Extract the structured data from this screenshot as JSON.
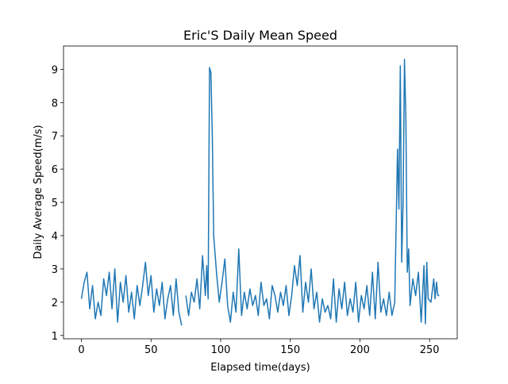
{
  "chart_data": {
    "type": "line",
    "title": "Eric'S Daily Mean Speed",
    "x_label": "Elapsed time(days)",
    "y_label": "Daily Average Speed(m/s)",
    "color": "#1f77b4",
    "x": [
      0,
      2,
      4,
      6,
      8,
      10,
      12,
      14,
      16,
      18,
      20,
      22,
      24,
      26,
      28,
      30,
      32,
      34,
      36,
      38,
      40,
      42,
      44,
      46,
      48,
      50,
      52,
      54,
      56,
      58,
      60,
      62,
      64,
      66,
      68,
      70,
      72,
      73,
      75,
      77,
      79,
      81,
      83,
      85,
      87,
      89,
      90,
      91,
      92,
      93,
      94,
      95,
      97,
      99,
      101,
      103,
      105,
      107,
      109,
      111,
      113,
      115,
      117,
      119,
      121,
      123,
      125,
      127,
      129,
      131,
      133,
      135,
      137,
      139,
      141,
      143,
      145,
      147,
      149,
      151,
      153,
      155,
      157,
      159,
      161,
      163,
      165,
      167,
      169,
      171,
      173,
      175,
      177,
      179,
      181,
      183,
      185,
      187,
      189,
      191,
      193,
      195,
      197,
      199,
      201,
      203,
      205,
      207,
      209,
      211,
      213,
      215,
      217,
      219,
      221,
      223,
      225,
      227,
      228,
      229,
      230,
      231,
      232,
      233,
      234,
      235,
      236,
      238,
      240,
      242,
      244,
      246,
      247,
      248,
      249,
      251,
      253,
      254,
      255,
      256,
      257
    ],
    "values": [
      2.1,
      2.6,
      2.9,
      1.8,
      2.5,
      1.5,
      2.0,
      1.6,
      2.7,
      2.2,
      2.9,
      1.8,
      3.0,
      1.4,
      2.6,
      2.0,
      2.8,
      1.7,
      2.3,
      1.5,
      2.5,
      1.9,
      2.5,
      3.2,
      2.2,
      2.8,
      1.7,
      2.4,
      1.9,
      2.6,
      1.5,
      2.1,
      2.5,
      1.6,
      2.7,
      1.7,
      1.3,
      null,
      2.2,
      1.6,
      2.3,
      2.0,
      2.7,
      1.8,
      3.4,
      2.2,
      3.1,
      2.1,
      9.05,
      8.9,
      7.0,
      4.0,
      2.9,
      2.0,
      2.6,
      3.3,
      1.9,
      1.4,
      2.3,
      1.7,
      3.6,
      1.6,
      2.3,
      1.8,
      2.4,
      1.9,
      2.2,
      1.6,
      2.6,
      1.9,
      2.1,
      1.5,
      2.5,
      2.2,
      1.7,
      2.3,
      1.9,
      2.5,
      1.6,
      2.2,
      3.1,
      2.5,
      3.4,
      1.7,
      2.6,
      2.0,
      3.0,
      1.8,
      2.3,
      1.4,
      2.1,
      1.7,
      1.9,
      1.5,
      2.7,
      1.4,
      2.4,
      1.8,
      2.6,
      1.6,
      2.1,
      1.7,
      2.6,
      1.4,
      2.2,
      1.8,
      2.5,
      1.6,
      2.9,
      1.5,
      3.2,
      1.7,
      2.1,
      1.6,
      2.3,
      1.6,
      2.0,
      6.6,
      4.8,
      9.1,
      3.2,
      5.0,
      9.3,
      7.5,
      2.9,
      3.6,
      1.9,
      2.7,
      2.2,
      2.9,
      1.4,
      3.1,
      1.35,
      3.2,
      2.1,
      2.0,
      2.7,
      2.1,
      2.6,
      2.2,
      2.2
    ],
    "xlim": [
      -12.85,
      269.85
    ],
    "xticks": [
      0,
      50,
      100,
      150,
      200,
      250
    ],
    "ylim": [
      0.9,
      9.7
    ],
    "yticks": [
      1,
      2,
      3,
      4,
      5,
      6,
      7,
      8,
      9
    ]
  }
}
